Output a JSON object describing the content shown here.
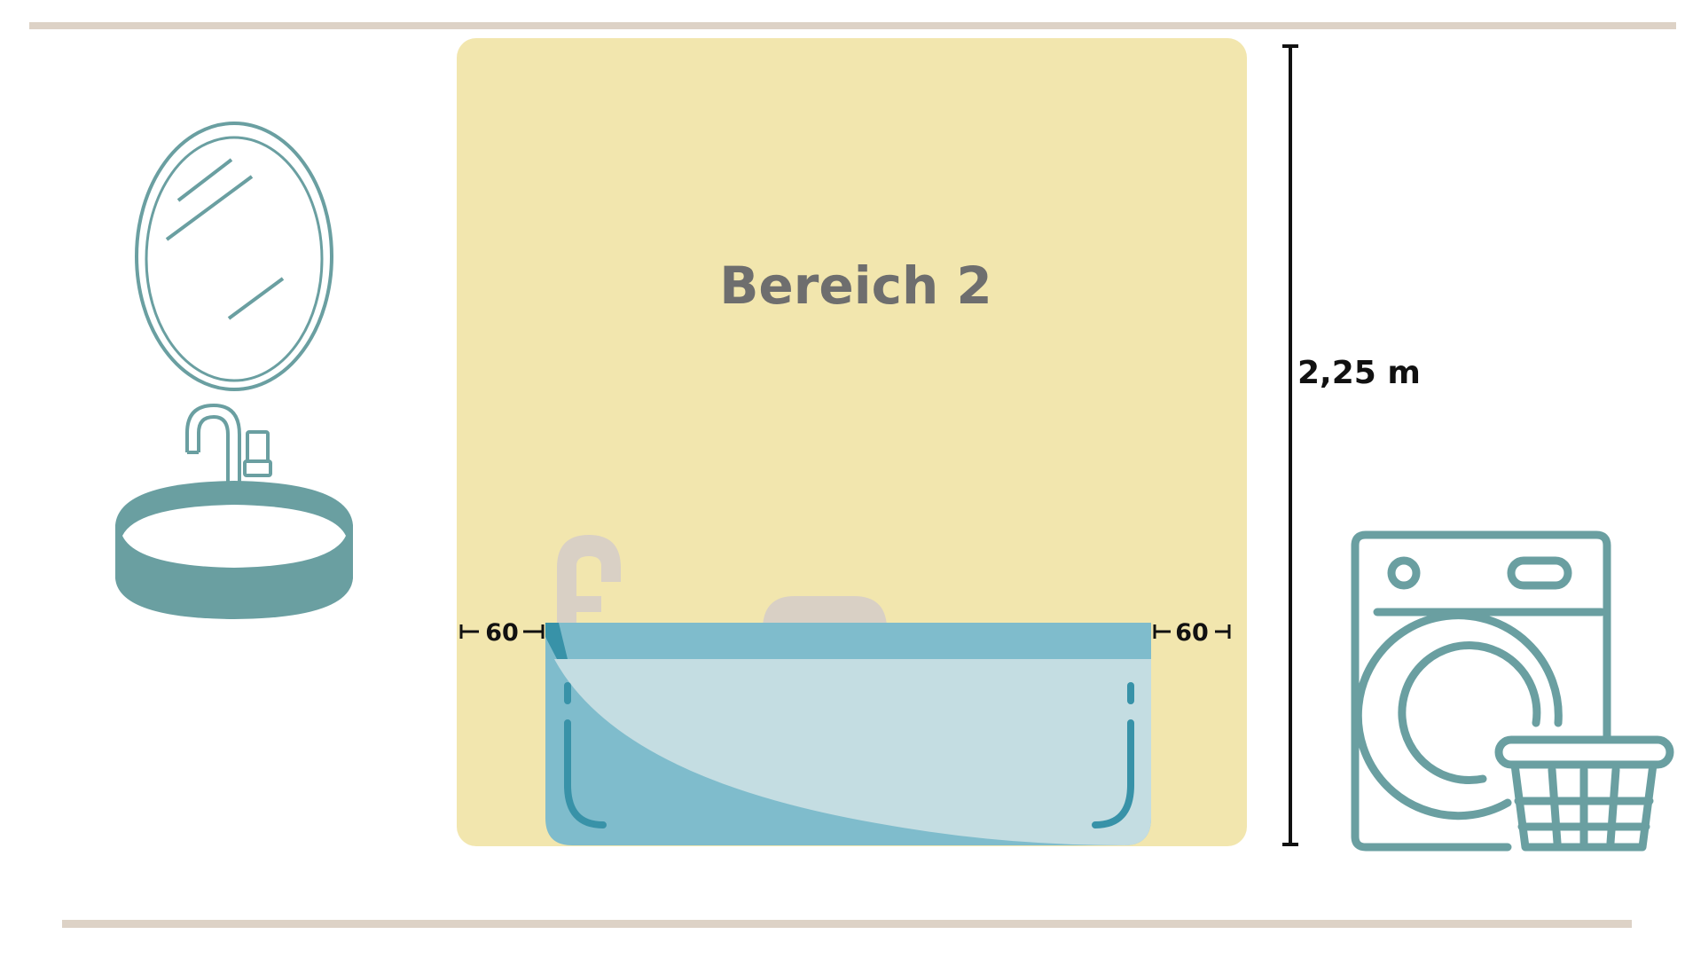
{
  "zone": {
    "label": "Bereich 2",
    "fill": "#f2e6ae"
  },
  "height_dimension": {
    "label": "2,25 m"
  },
  "clearance": {
    "left_label": "60",
    "right_label": "60"
  },
  "colors": {
    "floor_line": "#ddd2c6",
    "teal": "#6a9fa1",
    "tub_dark": "#7fbccc",
    "tub_light": "#c4dde2",
    "tub_detail": "#3892a8",
    "fixture_beige": "#d9d0c5",
    "dimension_line": "#111111"
  },
  "icons": {
    "mirror": "oval-mirror-icon",
    "sink": "sink-basin-icon",
    "faucet": "faucet-icon",
    "bathtub": "bathtub-icon",
    "shower_spout": "tub-spout-icon",
    "headrest": "tub-headrest-icon",
    "washing_machine": "washing-machine-icon",
    "laundry_basket": "laundry-basket-icon"
  }
}
